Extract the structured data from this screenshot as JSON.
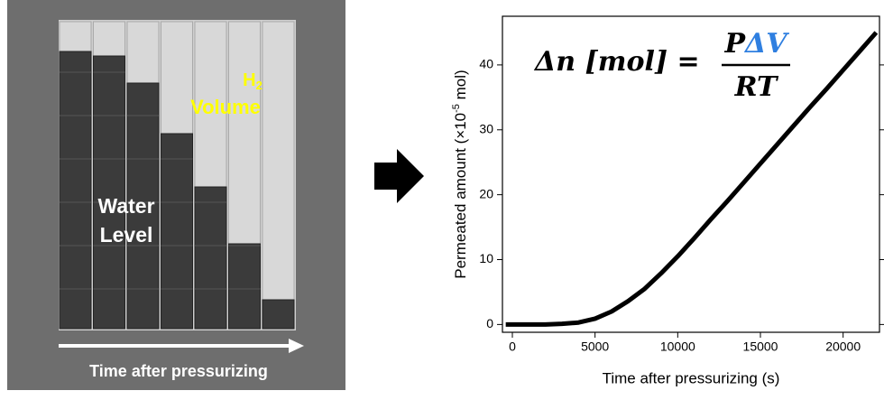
{
  "illustration": {
    "h2_symbol": "H",
    "h2_subscript": "2",
    "h2_word": "Volume",
    "water_1": "Water",
    "water_2": "Level",
    "arrow_label": "Time after pressurizing"
  },
  "chart_data": {
    "type": "line",
    "formula": {
      "lhs": "Δn [mol] =",
      "numerator_p": "P",
      "numerator_dv": "ΔV",
      "denominator": "RT"
    },
    "x_label": "Time after pressurizing (s)",
    "y_label": {
      "text": "Permeated amount (×10",
      "superscript": "-5",
      "unit": " mol)"
    },
    "x": [
      -400,
      0,
      1000,
      2000,
      3000,
      4000,
      5000,
      6000,
      7000,
      8000,
      9000,
      10000,
      11000,
      12000,
      13000,
      14000,
      15000,
      16000,
      17000,
      18000,
      19000,
      20000,
      21000,
      22000
    ],
    "values": [
      0,
      0,
      0,
      0,
      0.1,
      0.3,
      0.9,
      2.0,
      3.6,
      5.5,
      7.9,
      10.5,
      13.3,
      16.2,
      19.0,
      21.9,
      24.8,
      27.7,
      30.6,
      33.5,
      36.3,
      39.2,
      42.1,
      45.0
    ],
    "color": "#000000",
    "xlim": [
      -600,
      22200
    ],
    "ylim": [
      -1.2,
      47.5
    ],
    "xticks": [
      0,
      5000,
      10000,
      15000,
      20000
    ],
    "yticks": [
      0,
      10,
      20,
      30,
      40
    ]
  }
}
